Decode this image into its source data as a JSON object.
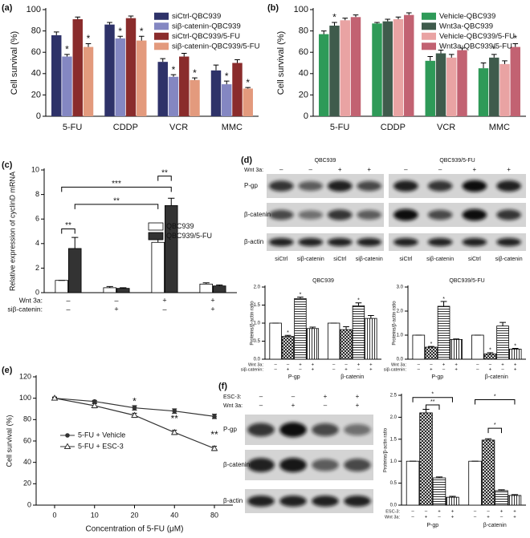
{
  "chart_data": [
    {
      "type": "bar",
      "panel": "(a)",
      "ylabel": "Cell survival (%)",
      "categories": [
        "5-FU",
        "CDDP",
        "VCR",
        "MMC"
      ],
      "ylim": [
        0,
        100
      ],
      "yticks": [
        0,
        20,
        40,
        60,
        80,
        100
      ],
      "legend": "upper right",
      "series": [
        {
          "name": "siCtrl-QBC939",
          "color": "#2e3269",
          "values": [
            76,
            86,
            51,
            43
          ],
          "errors": [
            3,
            2,
            3,
            5
          ]
        },
        {
          "name": "siβ-catenin-QBC939",
          "color": "#8487c2",
          "values": [
            56,
            73,
            37,
            30
          ],
          "errors": [
            2,
            2,
            2,
            3
          ],
          "significance": [
            "*",
            "*",
            "*",
            "*"
          ]
        },
        {
          "name": "siCtrl-QBC939/5-FU",
          "color": "#8a2c2c",
          "values": [
            91,
            92,
            56,
            50
          ],
          "errors": [
            2,
            2,
            3,
            3
          ]
        },
        {
          "name": "siβ-catenin-QBC939/5-FU",
          "color": "#e39a7d",
          "values": [
            65,
            71,
            34,
            26
          ],
          "errors": [
            3,
            4,
            2,
            1
          ],
          "significance": [
            "*",
            "*",
            "*",
            "*"
          ]
        }
      ]
    },
    {
      "type": "bar",
      "panel": "(b)",
      "ylabel": "Cell survival (%)",
      "categories": [
        "5-FU",
        "CDDP",
        "VCR",
        "MMC"
      ],
      "ylim": [
        0,
        100
      ],
      "yticks": [
        0,
        20,
        40,
        60,
        80,
        100
      ],
      "legend": "upper right",
      "series": [
        {
          "name": "Vehicle-QBC939",
          "color": "#2e9a58",
          "values": [
            77,
            87,
            52,
            45
          ],
          "errors": [
            3,
            1,
            4,
            5
          ]
        },
        {
          "name": "Wnt3a-QBC939",
          "color": "#3f5b4c",
          "values": [
            85,
            89,
            59,
            55
          ],
          "errors": [
            3,
            2,
            3,
            3
          ],
          "significance": [
            "*",
            null,
            null,
            "*"
          ]
        },
        {
          "name": "Vehicle-QBC939/5-FU",
          "color": "#e9a3a3",
          "values": [
            90,
            91,
            55,
            49
          ],
          "errors": [
            2,
            2,
            3,
            3
          ]
        },
        {
          "name": "Wnt3a-QBC939/5-FU",
          "color": "#c26272",
          "values": [
            93,
            95,
            62,
            65
          ],
          "errors": [
            2,
            2,
            2,
            3
          ],
          "significance": [
            null,
            null,
            null,
            "*"
          ]
        }
      ]
    },
    {
      "type": "bar",
      "panel": "(c)",
      "ylabel": "Relative expression of cyclinD mRNA",
      "ylim": [
        0,
        10
      ],
      "yticks": [
        0,
        2,
        4,
        6,
        8,
        10
      ],
      "legend": "center right",
      "series": [
        {
          "name": "QBC939",
          "color": "#ffffff",
          "values": [
            1,
            0.4,
            4.1,
            0.7
          ],
          "errors": [
            0,
            0.1,
            0.5,
            0.1
          ]
        },
        {
          "name": "QBC939/5-FU",
          "color": "#333333",
          "values": [
            3.6,
            0.35,
            7.1,
            0.55
          ],
          "errors": [
            0.9,
            0.05,
            0.6,
            0.08
          ]
        }
      ],
      "conditions": [
        {
          "label": "Wnt 3a:",
          "values": [
            "–",
            "–",
            "+",
            "+"
          ]
        },
        {
          "label": "siβ-catenin:",
          "values": [
            "–",
            "+",
            "–",
            "+"
          ]
        }
      ],
      "brackets": [
        "**",
        "***",
        "**",
        "**"
      ]
    },
    {
      "type": "bar",
      "title": "QBC939",
      "ylabel": "Proteins/β-actin ratio",
      "categories": [
        "P-gp",
        "β-catenin"
      ],
      "ylim": [
        0,
        2
      ],
      "yticks": [
        {
          "value": 0,
          "label": "0.0"
        },
        0.5,
        {
          "value": 1,
          "label": "1.0"
        },
        1.5,
        {
          "value": 2,
          "label": "2.0"
        }
      ],
      "series": [
        {
          "color": "#ffffff",
          "pattern": "blank",
          "values": [
            1,
            1
          ],
          "errors": [
            0,
            0
          ]
        },
        {
          "color": "#ffffff",
          "pattern": "cross",
          "values": [
            0.63,
            0.82
          ],
          "errors": [
            0.03,
            0.08
          ],
          "significance": [
            "*",
            null
          ]
        },
        {
          "color": "#ffffff",
          "pattern": "hline",
          "values": [
            1.68,
            1.48
          ],
          "errors": [
            0.04,
            0.08
          ],
          "significance": [
            "*",
            "*"
          ]
        },
        {
          "color": "#ffffff",
          "pattern": "vline",
          "values": [
            0.85,
            1.13
          ],
          "errors": [
            0.04,
            0.08
          ]
        }
      ],
      "conditions": [
        {
          "label": "Wnt 3a:",
          "values": [
            "–",
            "–",
            "+",
            "+",
            "–",
            "–",
            "+",
            "+"
          ]
        },
        {
          "label": "siβ-catenin:",
          "values": [
            "–",
            "+",
            "–",
            "+",
            "–",
            "+",
            "–",
            "+"
          ]
        }
      ]
    },
    {
      "type": "bar",
      "title": "QBC939/5-FU",
      "ylabel": "Proteins/β-actin ratio",
      "categories": [
        "P-gp",
        "β-catenin"
      ],
      "ylim": [
        0,
        3
      ],
      "yticks": [
        {
          "value": 0,
          "label": "0.0"
        },
        {
          "value": 1,
          "label": "1.0"
        },
        {
          "value": 2,
          "label": "2.0"
        },
        {
          "value": 3,
          "label": "3.0"
        }
      ],
      "series": [
        {
          "color": "#ffffff",
          "pattern": "blank",
          "values": [
            1,
            1
          ],
          "errors": [
            0,
            0
          ]
        },
        {
          "color": "#ffffff",
          "pattern": "cross",
          "values": [
            0.5,
            0.22
          ],
          "errors": [
            0.03,
            0.05
          ],
          "significance": [
            "*",
            "*"
          ]
        },
        {
          "color": "#ffffff",
          "pattern": "hline",
          "values": [
            2.2,
            1.38
          ],
          "errors": [
            0.2,
            0.15
          ],
          "significance": [
            "*",
            null
          ]
        },
        {
          "color": "#ffffff",
          "pattern": "vline",
          "values": [
            0.82,
            0.42
          ],
          "errors": [
            0.02,
            0.03
          ],
          "significance": [
            null,
            "*"
          ]
        }
      ],
      "conditions": [
        {
          "label": "Wnt 3a:",
          "values": [
            "–",
            "–",
            "+",
            "+",
            "–",
            "–",
            "+",
            "+"
          ]
        },
        {
          "label": "siβ-catenin:",
          "values": [
            "–",
            "+",
            "–",
            "+",
            "–",
            "+",
            "–",
            "+"
          ]
        }
      ]
    },
    {
      "type": "line",
      "panel": "(e)",
      "xlabel": "Concentration of 5-FU (μM)",
      "ylabel": "Cell survival (%)",
      "categories": [
        "0",
        "10",
        "20",
        "40",
        "80"
      ],
      "ylim": [
        0,
        120
      ],
      "yticks": [
        0,
        20,
        40,
        60,
        80,
        100,
        120
      ],
      "legend": "center left",
      "series": [
        {
          "name": "5-FU + Vehicle",
          "color": "#333333",
          "marker": "circle",
          "values": [
            100,
            97,
            91,
            88,
            83
          ],
          "errors": [
            1,
            1,
            2,
            2,
            2
          ]
        },
        {
          "name": "5-FU + ESC-3",
          "color": "#333333",
          "marker": "triangle",
          "values": [
            100,
            93,
            84,
            68,
            53
          ],
          "errors": [
            1,
            2,
            2,
            2,
            2
          ],
          "significance": [
            null,
            null,
            "*",
            "**",
            "**"
          ]
        }
      ]
    },
    {
      "type": "bar",
      "ylabel": "Proteins/β-actin ratio",
      "categories": [
        "P-gp",
        "β-catenin"
      ],
      "ylim": [
        0,
        2.5
      ],
      "yticks": [
        {
          "value": 0,
          "label": "0.0"
        },
        0.5,
        {
          "value": 1,
          "label": "1.0"
        },
        1.5,
        {
          "value": 2,
          "label": "2.0"
        },
        2.5
      ],
      "series": [
        {
          "color": "#ffffff",
          "pattern": "blank",
          "values": [
            1,
            1
          ],
          "errors": [
            0,
            0
          ]
        },
        {
          "color": "#ffffff",
          "pattern": "cross",
          "values": [
            2.1,
            1.48
          ],
          "errors": [
            0.08,
            0.03
          ]
        },
        {
          "color": "#ffffff",
          "pattern": "hline",
          "values": [
            0.62,
            0.33
          ],
          "errors": [
            0.02,
            0.02
          ]
        },
        {
          "color": "#ffffff",
          "pattern": "vline",
          "values": [
            0.18,
            0.22
          ],
          "errors": [
            0.02,
            0.02
          ]
        }
      ],
      "conditions": [
        {
          "label": "ESC-3:",
          "values": [
            "–",
            "–",
            "+",
            "+",
            "–",
            "–",
            "+",
            "+"
          ]
        },
        {
          "label": "Wnt 3a:",
          "values": [
            "–",
            "+",
            "–",
            "+",
            "–",
            "+",
            "–",
            "+"
          ]
        }
      ],
      "brackets": [
        "*",
        "**",
        "*",
        "*"
      ]
    }
  ],
  "blots": [
    {
      "panel": "(d)",
      "groups": [
        "QBC939",
        "QBC939/5-FU"
      ],
      "conditions": [
        {
          "label": "Wnt 3a:",
          "values": [
            "–",
            "–",
            "+",
            "+",
            "–",
            "–",
            "+",
            "+"
          ]
        }
      ],
      "rows": [
        "P-gp",
        "β-catenin",
        "β-actin"
      ],
      "lanes": [
        "siCtrl",
        "siβ-catenin",
        "siCtrl",
        "siβ-catenin",
        "siCtrl",
        "siβ-catenin",
        "siCtrl",
        "siβ-catenin"
      ]
    },
    {
      "panel": "(f)",
      "conditions": [
        {
          "label": "ESC-3:",
          "values": [
            "–",
            "–",
            "+",
            "+"
          ]
        },
        {
          "label": "Wnt 3a:",
          "values": [
            "–",
            "+",
            "–",
            "+"
          ]
        }
      ],
      "rows": [
        "P-gp",
        "β-catenin",
        "β-actin"
      ]
    }
  ]
}
